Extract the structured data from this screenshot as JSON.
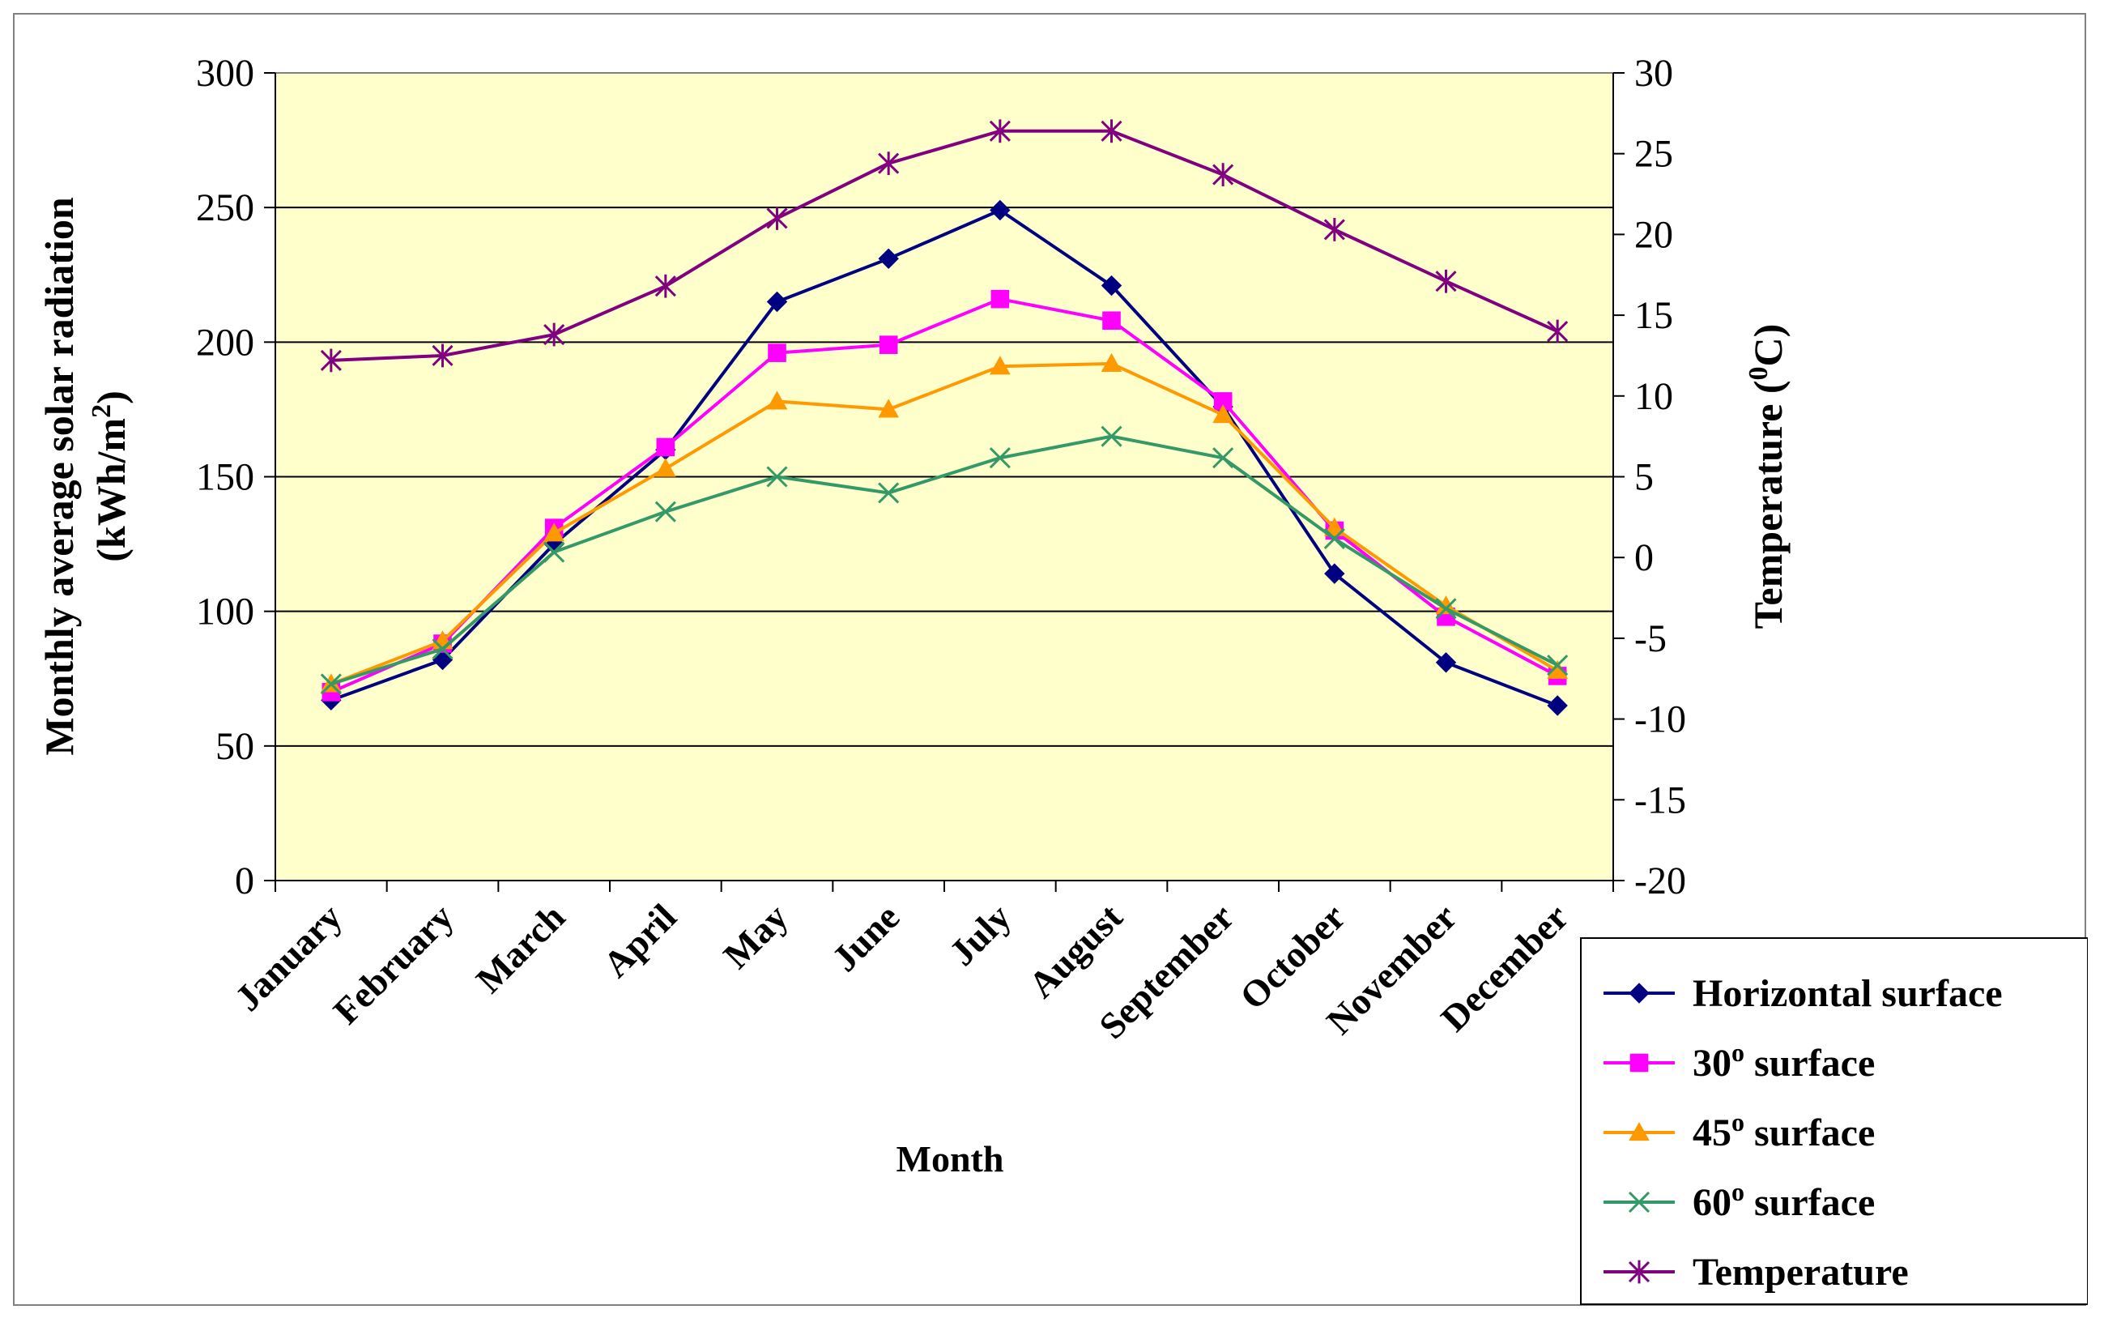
{
  "chart_data": {
    "type": "line",
    "xlabel": "Month",
    "ylabel": "Monthly average solar radiation",
    "ylabel_line2_prefix": "(kWh/m",
    "ylabel_line2_sup": "2",
    "ylabel_line2_suffix": ")",
    "y2label_prefix": "Temperature (",
    "y2label_sup": "0",
    "y2label_suffix": "C)",
    "ylim": [
      0,
      300
    ],
    "y_ticks": [
      "0",
      "50",
      "100",
      "150",
      "200",
      "250",
      "300"
    ],
    "y2lim": [
      -20,
      30
    ],
    "y2_ticks": [
      "-20",
      "-15",
      "-10",
      "-5",
      "0",
      "5",
      "10",
      "15",
      "20",
      "25",
      "30"
    ],
    "plot_background": "#FFFFCC",
    "grid": "horizontal major gridlines",
    "legend_placement": "bottom-right",
    "categories": [
      "January",
      "February",
      "March",
      "April",
      "May",
      "June",
      "July",
      "August",
      "September",
      "October",
      "November",
      "December"
    ],
    "series": [
      {
        "name": "Horizontal surface",
        "legend_main": "Horizontal surface",
        "legend_sup": "",
        "legend_rest": "",
        "axis": "left",
        "color": "#000080",
        "marker": "diamond",
        "values": [
          67,
          82,
          125,
          160,
          215,
          231,
          249,
          221,
          176,
          114,
          81,
          65
        ]
      },
      {
        "name": "30o surface",
        "legend_main": "30",
        "legend_sup": "o",
        "legend_rest": "  surface",
        "axis": "left",
        "color": "#FF00FF",
        "marker": "square",
        "values": [
          70,
          88,
          131,
          161,
          196,
          199,
          216,
          208,
          178,
          130,
          98,
          76
        ]
      },
      {
        "name": "45o surface",
        "legend_main": "45",
        "legend_sup": "o",
        "legend_rest": "  surface",
        "axis": "left",
        "color": "#FF9900",
        "marker": "triangle",
        "values": [
          73,
          89,
          129,
          153,
          178,
          175,
          191,
          192,
          173,
          131,
          102,
          78
        ]
      },
      {
        "name": "60o surface",
        "legend_main": "60",
        "legend_sup": "o",
        "legend_rest": "  surface",
        "axis": "left",
        "color": "#339966",
        "marker": "x",
        "values": [
          73,
          86,
          122,
          137,
          150,
          144,
          157,
          165,
          157,
          127,
          101,
          80
        ]
      },
      {
        "name": "Temperature",
        "legend_main": "Temperature",
        "legend_sup": "",
        "legend_rest": "",
        "axis": "right",
        "color": "#800080",
        "marker": "star",
        "values": [
          12.2,
          12.5,
          13.8,
          16.8,
          21,
          24.4,
          26.4,
          26.4,
          23.7,
          20.3,
          17.1,
          14
        ]
      }
    ]
  }
}
